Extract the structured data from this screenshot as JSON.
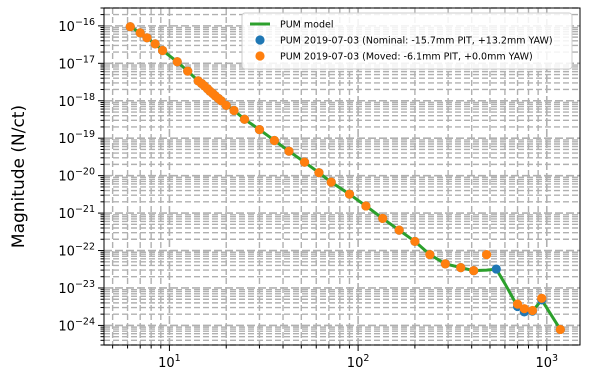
{
  "chart_data": {
    "type": "line",
    "title": "",
    "xlabel": "",
    "ylabel": "Magnitude (N/ct)",
    "xscale": "log",
    "yscale": "log",
    "xlim": [
      4.5,
      1500
    ],
    "ylim": [
      3e-25,
      3e-16
    ],
    "grid": true,
    "legend_position": "top-right",
    "x_ticks": [
      {
        "value": 10,
        "base": "10",
        "exp": "1"
      },
      {
        "value": 100,
        "base": "10",
        "exp": "2"
      },
      {
        "value": 1000,
        "base": "10",
        "exp": "3"
      }
    ],
    "y_ticks": [
      {
        "value": 1e-16,
        "base": "10",
        "exp": "−16"
      },
      {
        "value": 1e-17,
        "base": "10",
        "exp": "−17"
      },
      {
        "value": 1e-18,
        "base": "10",
        "exp": "−18"
      },
      {
        "value": 1e-19,
        "base": "10",
        "exp": "−19"
      },
      {
        "value": 1e-20,
        "base": "10",
        "exp": "−20"
      },
      {
        "value": 1e-21,
        "base": "10",
        "exp": "−21"
      },
      {
        "value": 1e-22,
        "base": "10",
        "exp": "−22"
      },
      {
        "value": 1e-23,
        "base": "10",
        "exp": "−23"
      },
      {
        "value": 1e-24,
        "base": "10",
        "exp": "−24"
      }
    ],
    "series": [
      {
        "name": "PUM model",
        "kind": "line",
        "color": "#2ca02c",
        "x": [
          6.2,
          7.0,
          7.6,
          8.4,
          9.2,
          11.0,
          12.5,
          14.2,
          14.8,
          15.3,
          15.9,
          16.4,
          17.0,
          17.5,
          18.2,
          18.8,
          20.0,
          22.0,
          25.0,
          30.0,
          36.0,
          43.0,
          52.0,
          62.0,
          72.0,
          90.0,
          110.0,
          135.0,
          165.0,
          200.0,
          240.0,
          290.0,
          350.0,
          410.0,
          480.0,
          540.0,
          600.0,
          700.0,
          760.0,
          840.0,
          940.0,
          1180.0
        ],
        "y": [
          9.5e-17,
          6.5e-17,
          4.8e-17,
          3.3e-17,
          2.2e-17,
          1.1e-17,
          6.2e-18,
          3.4e-18,
          2.9e-18,
          2.5e-18,
          2.1e-18,
          1.8e-18,
          1.55e-18,
          1.35e-18,
          1.15e-18,
          1e-18,
          7.5e-19,
          5.5e-19,
          3.2e-19,
          1.7e-19,
          8.7e-20,
          4.5e-20,
          2.3e-20,
          1.2e-20,
          6.7e-21,
          3.2e-21,
          1.55e-21,
          7.2e-22,
          3.5e-22,
          1.75e-22,
          7.8e-23,
          4.4e-23,
          3.5e-23,
          2.9e-23,
          3e-23,
          3.2e-23,
          1.3e-23,
          3.2e-24,
          2.6e-24,
          2.4e-24,
          4.8e-24,
          7.8e-25
        ]
      },
      {
        "name": "PUM 2019-07-03 (Nominal: -15.7mm PIT, +13.2mm YAW)",
        "kind": "scatter",
        "color": "#1f77b4",
        "x": [
          6.2,
          7.0,
          7.6,
          8.4,
          9.2,
          11.0,
          12.5,
          14.2,
          14.8,
          15.3,
          15.9,
          16.4,
          17.0,
          17.5,
          18.2,
          18.8,
          20.0,
          22.0,
          25.0,
          30.0,
          36.0,
          43.0,
          52.0,
          62.0,
          72.0,
          90.0,
          110.0,
          135.0,
          165.0,
          200.0,
          240.0,
          290.0,
          350.0,
          410.0,
          540.0,
          700.0,
          760.0,
          840.0,
          940.0,
          1180.0
        ],
        "y": [
          9.5e-17,
          6.5e-17,
          4.8e-17,
          3.3e-17,
          2.2e-17,
          1.1e-17,
          6.2e-18,
          3.4e-18,
          2.9e-18,
          2.5e-18,
          2.1e-18,
          1.8e-18,
          1.55e-18,
          1.35e-18,
          1.15e-18,
          1e-18,
          7.5e-19,
          5.5e-19,
          3.2e-19,
          1.7e-19,
          8.7e-20,
          4.5e-20,
          2.3e-20,
          1.2e-20,
          6.7e-21,
          3.2e-21,
          1.55e-21,
          7.2e-22,
          3.5e-22,
          1.75e-22,
          7.8e-23,
          4.4e-23,
          3.5e-23,
          2.9e-23,
          3.2e-23,
          3.2e-24,
          2.3e-24,
          2.4e-24,
          4.8e-24,
          7.8e-25
        ]
      },
      {
        "name": "PUM 2019-07-03 (Moved: -6.1mm PIT, +0.0mm YAW)",
        "kind": "scatter",
        "color": "#ff7f0e",
        "x": [
          6.2,
          7.0,
          7.6,
          8.4,
          9.2,
          11.0,
          12.5,
          14.2,
          14.8,
          15.3,
          15.9,
          16.4,
          17.0,
          17.5,
          18.2,
          18.8,
          20.0,
          22.0,
          25.0,
          30.0,
          36.0,
          43.0,
          52.0,
          62.0,
          72.0,
          90.0,
          110.0,
          135.0,
          165.0,
          200.0,
          240.0,
          290.0,
          350.0,
          410.0,
          480.0,
          700.0,
          760.0,
          840.0,
          940.0,
          1180.0
        ],
        "y": [
          9.5e-17,
          6.5e-17,
          4.8e-17,
          3.3e-17,
          2.2e-17,
          1.1e-17,
          6.2e-18,
          3.4e-18,
          2.9e-18,
          2.5e-18,
          2.1e-18,
          1.8e-18,
          1.55e-18,
          1.35e-18,
          1.15e-18,
          1e-18,
          7.5e-19,
          5.5e-19,
          3.2e-19,
          1.7e-19,
          8.7e-20,
          4.5e-20,
          2.3e-20,
          1.2e-20,
          6.7e-21,
          3.2e-21,
          1.55e-21,
          7.2e-22,
          3.5e-22,
          1.75e-22,
          7.8e-23,
          4.4e-23,
          3.5e-23,
          2.9e-23,
          7.8e-23,
          3.7e-24,
          2.8e-24,
          2.5e-24,
          5.3e-24,
          7.8e-25
        ]
      }
    ]
  }
}
